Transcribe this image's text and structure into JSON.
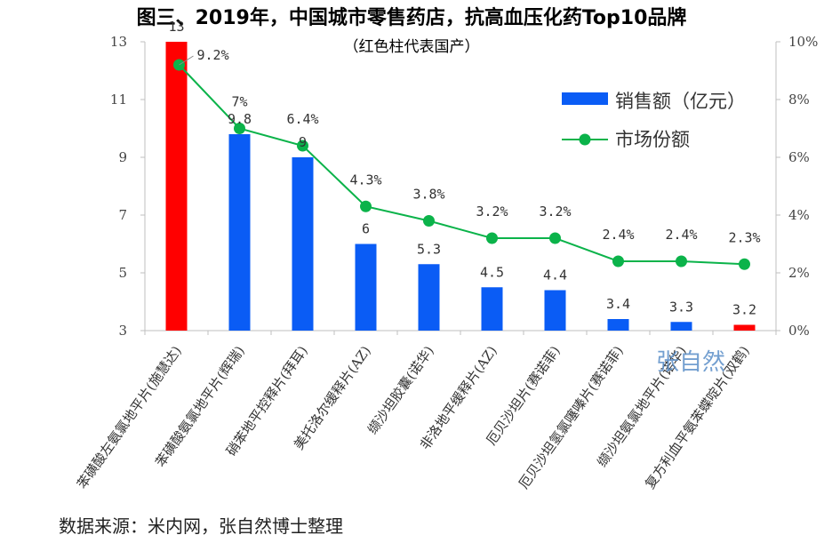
{
  "chart_data": {
    "type": "bar",
    "title": "图三、2019年，中国城市零售药店，抗高血压化药Top10品牌",
    "subtitle": "（红色柱代表国产）",
    "categories": [
      "苯磺酸左氨氯地平片(施慧达)",
      "苯磺酸氨氯地平片(辉瑞)",
      "硝苯地平控释片(拜耳)",
      "美托洛尔缓释片(AZ)",
      "缬沙坦胶囊(诺华)",
      "非洛地平缓释片(AZ)",
      "厄贝沙坦片(赛诺菲)",
      "厄贝沙坦氢氯噻嗪片(赛诺菲)",
      "缬沙坦氨氯地平片(诺华)",
      "复方利血平氨苯蝶啶片(双鹤)"
    ],
    "series": [
      {
        "name": "销售额（亿元）",
        "type": "bar",
        "axis": "left",
        "values": [
          13,
          9.8,
          9,
          6,
          5.3,
          4.5,
          4.4,
          3.4,
          3.3,
          3.2
        ],
        "labels": [
          "13",
          "9.8",
          "9",
          "6",
          "5.3",
          "4.5",
          "4.4",
          "3.4",
          "3.3",
          "3.2"
        ],
        "domestic": [
          true,
          false,
          false,
          false,
          false,
          false,
          false,
          false,
          false,
          true
        ]
      },
      {
        "name": "市场份额",
        "type": "line",
        "axis": "right",
        "values": [
          9.2,
          7.0,
          6.4,
          4.3,
          3.8,
          3.2,
          3.2,
          2.4,
          2.4,
          2.3
        ],
        "labels": [
          "9.2%",
          "7%",
          "6.4%",
          "4.3%",
          "3.8%",
          "3.2%",
          "3.2%",
          "2.4%",
          "2.4%",
          "2.3%"
        ]
      }
    ],
    "y_left": {
      "min": 3,
      "max": 13,
      "ticks": [
        3,
        5,
        7,
        9,
        11,
        13
      ]
    },
    "y_right": {
      "min": 0,
      "max": 10,
      "ticks": [
        "0%",
        "2%",
        "4%",
        "6%",
        "8%",
        "10%"
      ]
    },
    "legend_position": "top-right",
    "grid": false,
    "colors": {
      "bar": "#0a5cf5",
      "bar_domestic": "#ff0000",
      "line": "#0bb34a"
    }
  },
  "watermark": "张自然",
  "source_note": "数据来源：米内网，张自然博士整理"
}
